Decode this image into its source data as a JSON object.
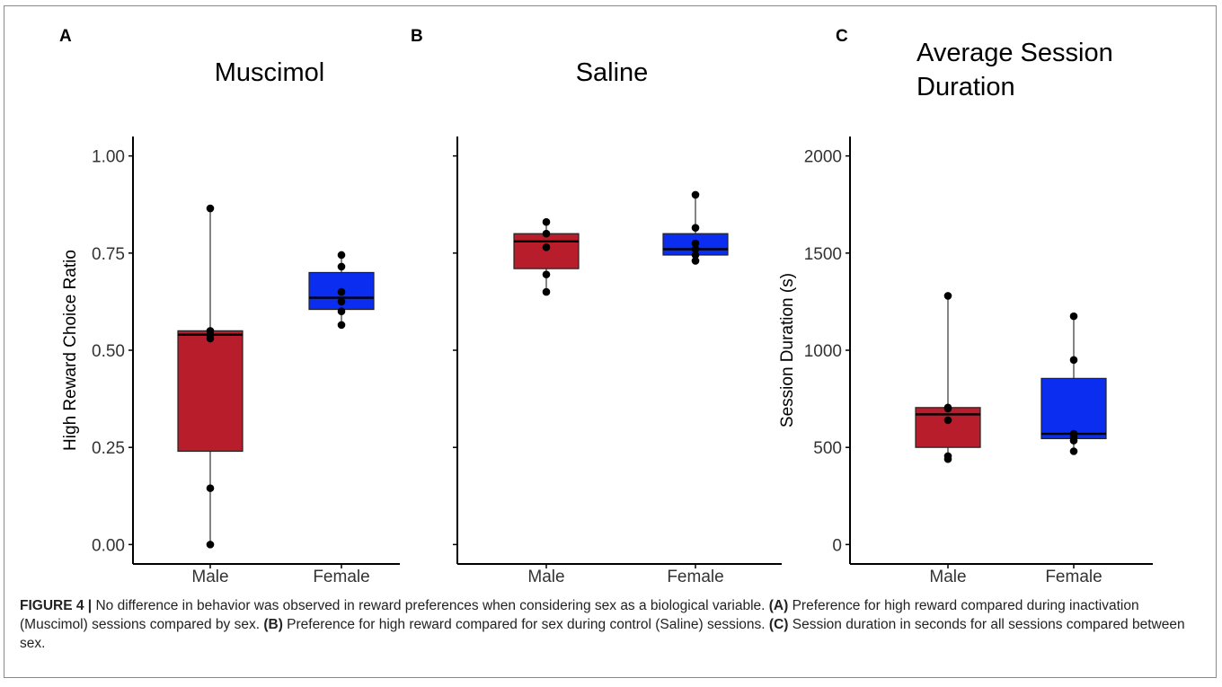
{
  "chart_data": [
    {
      "type": "box",
      "panel_letter": "A",
      "title": "Muscimol",
      "ylabel": "High Reward Choice Ratio",
      "xlabel": "",
      "ylim": [
        -0.05,
        1.05
      ],
      "yticks": [
        0.0,
        0.25,
        0.5,
        0.75,
        1.0
      ],
      "ytick_labels": [
        "0.00",
        "0.25",
        "0.50",
        "0.75",
        "1.00"
      ],
      "categories": [
        "Male",
        "Female"
      ],
      "colors": [
        "#b81d2b",
        "#0a2df0"
      ],
      "boxes": [
        {
          "min": 0.0,
          "q1": 0.24,
          "median": 0.54,
          "q3": 0.55,
          "max": 0.865
        },
        {
          "min": 0.565,
          "q1": 0.605,
          "median": 0.635,
          "q3": 0.7,
          "max": 0.745
        }
      ],
      "points": [
        [
          0.865,
          0.55,
          0.54,
          0.53,
          0.145,
          0.0
        ],
        [
          0.745,
          0.715,
          0.65,
          0.625,
          0.6,
          0.565
        ]
      ]
    },
    {
      "type": "box",
      "panel_letter": "B",
      "title": "Saline",
      "ylabel": "",
      "xlabel": "",
      "ylim": [
        -0.05,
        1.05
      ],
      "yticks": [
        0.0,
        0.25,
        0.5,
        0.75,
        1.0
      ],
      "ytick_labels": [
        "",
        "",
        "",
        "",
        ""
      ],
      "categories": [
        "Male",
        "Female"
      ],
      "colors": [
        "#b81d2b",
        "#0a2df0"
      ],
      "boxes": [
        {
          "min": 0.65,
          "q1": 0.71,
          "median": 0.78,
          "q3": 0.8,
          "max": 0.83
        },
        {
          "min": 0.73,
          "q1": 0.745,
          "median": 0.76,
          "q3": 0.8,
          "max": 0.9
        }
      ],
      "points": [
        [
          0.83,
          0.8,
          0.765,
          0.695,
          0.65
        ],
        [
          0.9,
          0.815,
          0.775,
          0.76,
          0.745,
          0.73
        ]
      ]
    },
    {
      "type": "box",
      "panel_letter": "C",
      "title": "Average Session Duration",
      "title_lines": [
        "Average Session",
        "Duration"
      ],
      "ylabel": "Session Duration (s)",
      "xlabel": "",
      "ylim": [
        -100,
        2100
      ],
      "yticks": [
        0,
        500,
        1000,
        1500,
        2000
      ],
      "ytick_labels": [
        "0",
        "500",
        "1000",
        "1500",
        "2000"
      ],
      "categories": [
        "Male",
        "Female"
      ],
      "colors": [
        "#b81d2b",
        "#0a2df0"
      ],
      "boxes": [
        {
          "min": 440,
          "q1": 500,
          "median": 670,
          "q3": 705,
          "max": 1280
        },
        {
          "min": 480,
          "q1": 545,
          "median": 570,
          "q3": 855,
          "max": 1175
        }
      ],
      "points": [
        [
          1280,
          705,
          700,
          640,
          455,
          440
        ],
        [
          1175,
          950,
          570,
          555,
          535,
          480
        ]
      ]
    }
  ],
  "caption": {
    "figure_label": "FIGURE 4 |",
    "text_1": " No difference in behavior was observed in reward preferences when considering sex as a biological variable. ",
    "ref_a": "(A)",
    "text_2": " Preference for high reward compared during inactivation (Muscimol) sessions compared by sex. ",
    "ref_b": "(B)",
    "text_3": " Preference for high reward compared for sex during control (Saline) sessions. ",
    "ref_c": "(C)",
    "text_4": " Session duration in seconds for all sessions compared between sex."
  }
}
